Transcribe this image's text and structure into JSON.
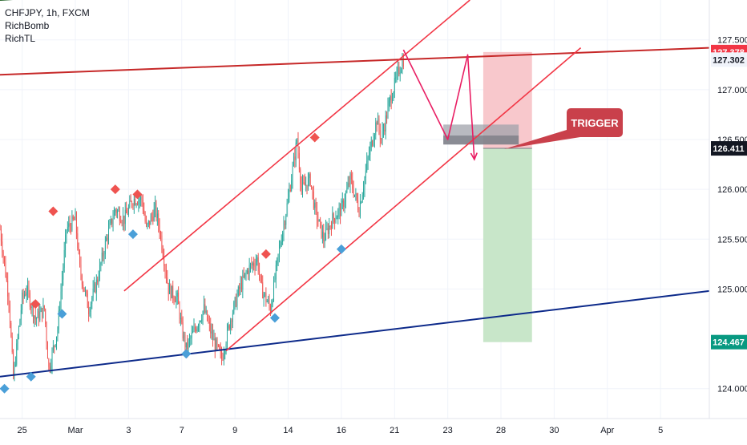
{
  "legend": {
    "symbol": "CHFJPY, 1h, FXCM",
    "indicator1": "RichBomb",
    "indicator2": "RichTL"
  },
  "annotation": {
    "trigger_label": "TRIGGER"
  },
  "price_badges": [
    {
      "label": "127.378",
      "value": 127.378,
      "bg": "#f23645",
      "fg": "#ffffff"
    },
    {
      "label": "127.302",
      "value": 127.302,
      "bg": "#f0f3fa",
      "fg": "#131722"
    },
    {
      "label": "126.411",
      "value": 126.411,
      "bg": "#131722",
      "fg": "#ffffff"
    },
    {
      "label": "124.467",
      "value": 124.467,
      "bg": "#089981",
      "fg": "#ffffff"
    }
  ],
  "colors": {
    "bull": "#26a69a",
    "bear": "#ef5350",
    "channel": "#f23645",
    "resistance": "#c62828",
    "support": "#0d2a8a",
    "projection": "#e91e63",
    "stop_zone": "#f8c8cc",
    "target_zone": "#c8e6c9",
    "trigger_box": "#a0a3ab",
    "trigger_callout": "#c9404b",
    "signal_sell": "#ef5350",
    "signal_buy": "#4a9fd8"
  },
  "chart_data": {
    "type": "candlestick",
    "symbol": "CHFJPY",
    "timeframe": "1h",
    "y_axis": {
      "ticks": [
        "127.500",
        "127.000",
        "126.500",
        "126.000",
        "125.500",
        "125.000",
        "124.000"
      ],
      "tick_values": [
        127.5,
        127.0,
        126.5,
        126.0,
        125.5,
        125.0,
        124.0
      ],
      "range": [
        123.7,
        127.9
      ]
    },
    "x_axis": {
      "ticks": [
        {
          "label": "25",
          "bar": 0
        },
        {
          "label": "Mar",
          "bar": 12
        },
        {
          "label": "3",
          "bar": 24
        },
        {
          "label": "7",
          "bar": 36
        },
        {
          "label": "9",
          "bar": 48
        },
        {
          "label": "14",
          "bar": 60
        },
        {
          "label": "16",
          "bar": 72
        },
        {
          "label": "21",
          "bar": 84
        },
        {
          "label": "23",
          "bar": 96
        },
        {
          "label": "28",
          "bar": 108
        },
        {
          "label": "30",
          "bar": 120
        },
        {
          "label": "Apr",
          "bar": 132
        },
        {
          "label": "5",
          "bar": 144
        }
      ],
      "range": [
        -5,
        155
      ]
    },
    "price_path": [
      [
        -5,
        125.6
      ],
      [
        -3,
        124.9
      ],
      [
        -2,
        124.1
      ],
      [
        0,
        124.9
      ],
      [
        1,
        125.0
      ],
      [
        3,
        124.7
      ],
      [
        5,
        124.8
      ],
      [
        6,
        124.2
      ],
      [
        8,
        124.6
      ],
      [
        10,
        125.6
      ],
      [
        12,
        125.7
      ],
      [
        13,
        125.2
      ],
      [
        15,
        124.8
      ],
      [
        17,
        125.1
      ],
      [
        19,
        125.5
      ],
      [
        21,
        125.8
      ],
      [
        23,
        125.7
      ],
      [
        25,
        125.9
      ],
      [
        27,
        125.9
      ],
      [
        28,
        125.6
      ],
      [
        30,
        125.8
      ],
      [
        31,
        125.6
      ],
      [
        33,
        125.0
      ],
      [
        35,
        124.9
      ],
      [
        36,
        124.6
      ],
      [
        37,
        124.4
      ],
      [
        39,
        124.6
      ],
      [
        41,
        124.8
      ],
      [
        43,
        124.5
      ],
      [
        45,
        124.3
      ],
      [
        47,
        124.7
      ],
      [
        49,
        125.0
      ],
      [
        51,
        125.2
      ],
      [
        53,
        125.3
      ],
      [
        54,
        125.0
      ],
      [
        56,
        124.8
      ],
      [
        58,
        125.4
      ],
      [
        60,
        125.9
      ],
      [
        62,
        126.5
      ],
      [
        63,
        126.0
      ],
      [
        65,
        126.1
      ],
      [
        66,
        125.8
      ],
      [
        68,
        125.5
      ],
      [
        70,
        125.7
      ],
      [
        72,
        125.8
      ],
      [
        74,
        126.1
      ],
      [
        76,
        125.8
      ],
      [
        78,
        126.3
      ],
      [
        80,
        126.7
      ],
      [
        81,
        126.5
      ],
      [
        83,
        126.9
      ],
      [
        85,
        127.2
      ],
      [
        86,
        127.3
      ]
    ],
    "signals": {
      "sell": [
        [
          3,
          124.85
        ],
        [
          7,
          125.78
        ],
        [
          21,
          126.0
        ],
        [
          26,
          125.95
        ],
        [
          55,
          125.35
        ],
        [
          66,
          126.52
        ]
      ],
      "buy": [
        [
          -4,
          124.0
        ],
        [
          2,
          124.12
        ],
        [
          9,
          124.75
        ],
        [
          25,
          125.55
        ],
        [
          37,
          124.35
        ],
        [
          57,
          124.71
        ],
        [
          72,
          125.4
        ]
      ]
    },
    "lines": {
      "resistance": {
        "points": [
          [
            -5,
            127.15
          ],
          [
            155,
            127.42
          ]
        ]
      },
      "support": {
        "points": [
          [
            -5,
            124.12
          ],
          [
            155,
            124.98
          ]
        ]
      },
      "channel_upper": {
        "points": [
          [
            23,
            124.98
          ],
          [
            101,
            127.9
          ]
        ]
      },
      "channel_lower": {
        "points": [
          [
            46,
            124.38
          ],
          [
            126,
            127.42
          ]
        ]
      },
      "top_edge": {
        "points": [
          [
            -5,
            127.9
          ],
          [
            31,
            128.0
          ]
        ]
      },
      "projection": {
        "points": [
          [
            86,
            127.4
          ],
          [
            96,
            126.5
          ],
          [
            100.5,
            127.35
          ],
          [
            102,
            126.3
          ]
        ]
      }
    },
    "zones": {
      "stop": {
        "x": [
          104,
          115
        ],
        "y": [
          126.411,
          127.378
        ]
      },
      "target": {
        "x": [
          104,
          115
        ],
        "y": [
          124.467,
          126.411
        ]
      },
      "trigger": {
        "x": [
          95,
          112
        ],
        "y": [
          126.45,
          126.65
        ]
      }
    },
    "last_price": 127.302
  }
}
